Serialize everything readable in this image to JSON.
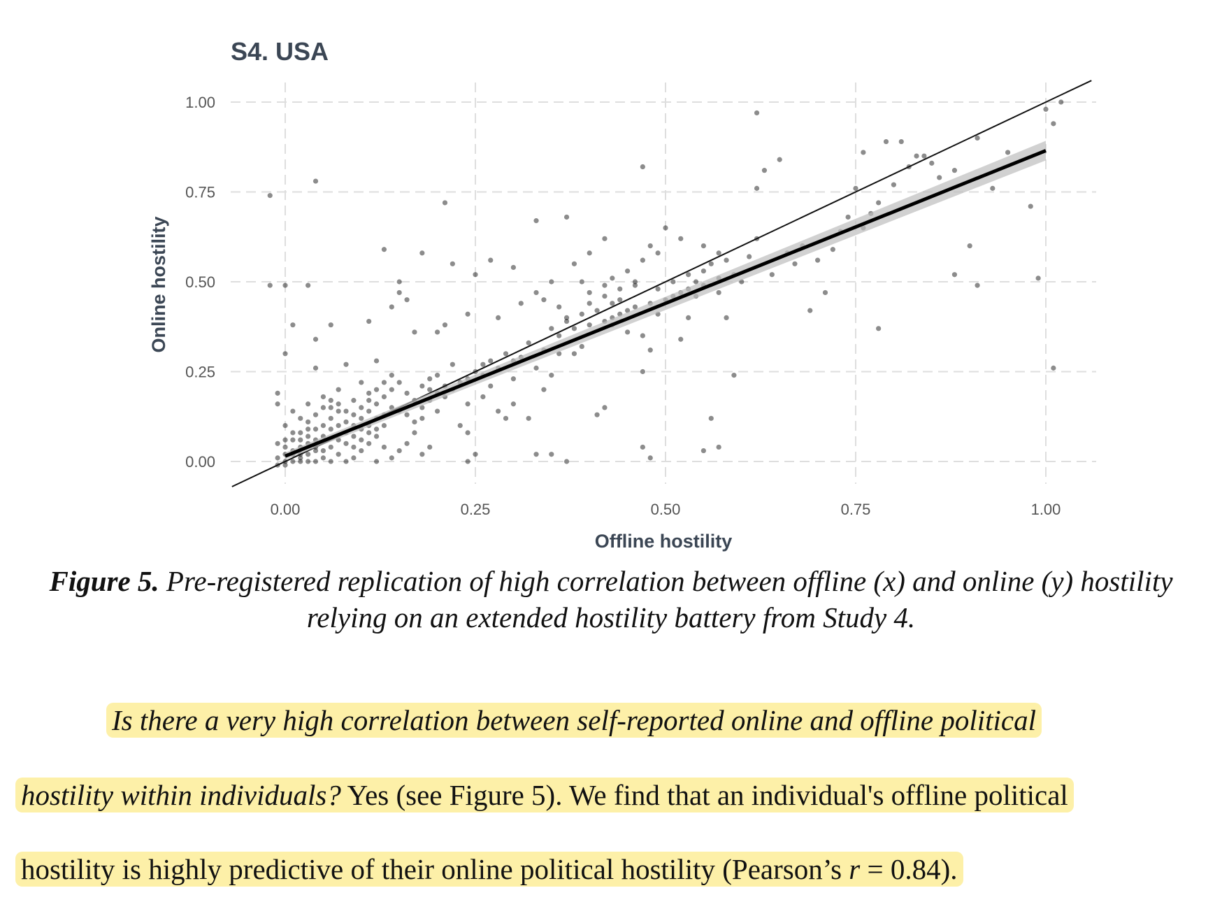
{
  "chart_data": {
    "type": "scatter",
    "title": "S4. USA",
    "xlabel": "Offline hostility",
    "ylabel": "Online hostility",
    "xlim": [
      -0.15,
      1.13
    ],
    "ylim": [
      -0.07,
      1.05
    ],
    "x_ticks": [
      "0.00",
      "0.25",
      "0.50",
      "0.75",
      "1.00"
    ],
    "y_ticks": [
      "0.00",
      "0.25",
      "0.50",
      "0.75",
      "1.00"
    ],
    "grid": true,
    "identity_line": {
      "from": [
        -0.07,
        -0.07
      ],
      "to": [
        1.06,
        1.06
      ]
    },
    "regression_line": {
      "from": [
        0.0,
        0.015
      ],
      "to": [
        1.0,
        0.865
      ]
    },
    "points": [
      [
        -0.02,
        0.74
      ],
      [
        0.04,
        0.78
      ],
      [
        -0.02,
        0.49
      ],
      [
        0.0,
        0.49
      ],
      [
        0.03,
        0.49
      ],
      [
        0.21,
        0.72
      ],
      [
        0.13,
        0.59
      ],
      [
        0.18,
        0.58
      ],
      [
        0.22,
        0.55
      ],
      [
        0.15,
        0.5
      ],
      [
        0.16,
        0.45
      ],
      [
        0.15,
        0.47
      ],
      [
        0.11,
        0.39
      ],
      [
        0.06,
        0.38
      ],
      [
        0.01,
        0.38
      ],
      [
        0.04,
        0.34
      ],
      [
        0.0,
        0.3
      ],
      [
        0.08,
        0.27
      ],
      [
        0.04,
        0.26
      ],
      [
        0.12,
        0.28
      ],
      [
        0.27,
        0.56
      ],
      [
        0.25,
        0.52
      ],
      [
        0.3,
        0.54
      ],
      [
        0.33,
        0.67
      ],
      [
        0.37,
        0.68
      ],
      [
        0.4,
        0.58
      ],
      [
        0.42,
        0.62
      ],
      [
        0.38,
        0.55
      ],
      [
        0.35,
        0.5
      ],
      [
        0.33,
        0.47
      ],
      [
        0.34,
        0.45
      ],
      [
        0.31,
        0.44
      ],
      [
        0.28,
        0.4
      ],
      [
        0.24,
        0.41
      ],
      [
        0.21,
        0.38
      ],
      [
        0.2,
        0.36
      ],
      [
        0.17,
        0.36
      ],
      [
        0.14,
        0.43
      ],
      [
        0.36,
        0.43
      ],
      [
        0.37,
        0.4
      ],
      [
        0.4,
        0.47
      ],
      [
        0.42,
        0.49
      ],
      [
        0.39,
        0.5
      ],
      [
        0.43,
        0.51
      ],
      [
        0.45,
        0.53
      ],
      [
        0.47,
        0.56
      ],
      [
        0.48,
        0.6
      ],
      [
        0.49,
        0.58
      ],
      [
        0.46,
        0.49
      ],
      [
        0.44,
        0.45
      ],
      [
        0.41,
        0.42
      ],
      [
        0.43,
        0.38
      ],
      [
        0.45,
        0.36
      ],
      [
        0.47,
        0.35
      ],
      [
        0.49,
        0.41
      ],
      [
        0.51,
        0.46
      ],
      [
        0.53,
        0.48
      ],
      [
        0.54,
        0.5
      ],
      [
        0.55,
        0.53
      ],
      [
        0.56,
        0.55
      ],
      [
        0.57,
        0.58
      ],
      [
        0.58,
        0.56
      ],
      [
        0.59,
        0.52
      ],
      [
        0.5,
        0.65
      ],
      [
        0.52,
        0.62
      ],
      [
        0.55,
        0.6
      ],
      [
        0.47,
        0.82
      ],
      [
        0.48,
        0.31
      ],
      [
        0.47,
        0.25
      ],
      [
        0.43,
        0.4
      ],
      [
        0.41,
        0.13
      ],
      [
        0.42,
        0.15
      ],
      [
        0.47,
        0.04
      ],
      [
        0.48,
        0.01
      ],
      [
        0.55,
        0.03
      ],
      [
        0.57,
        0.04
      ],
      [
        0.56,
        0.12
      ],
      [
        0.59,
        0.24
      ],
      [
        0.52,
        0.34
      ],
      [
        0.53,
        0.4
      ],
      [
        0.57,
        0.47
      ],
      [
        0.58,
        0.4
      ],
      [
        0.62,
        0.97
      ],
      [
        0.62,
        0.76
      ],
      [
        0.63,
        0.81
      ],
      [
        0.65,
        0.84
      ],
      [
        0.61,
        0.57
      ],
      [
        0.62,
        0.62
      ],
      [
        0.66,
        0.58
      ],
      [
        0.68,
        0.6
      ],
      [
        0.69,
        0.42
      ],
      [
        0.72,
        0.59
      ],
      [
        0.71,
        0.47
      ],
      [
        0.74,
        0.68
      ],
      [
        0.73,
        0.64
      ],
      [
        0.75,
        0.76
      ],
      [
        0.78,
        0.72
      ],
      [
        0.76,
        0.86
      ],
      [
        0.79,
        0.89
      ],
      [
        0.81,
        0.89
      ],
      [
        0.82,
        0.82
      ],
      [
        0.83,
        0.85
      ],
      [
        0.84,
        0.85
      ],
      [
        0.85,
        0.83
      ],
      [
        0.78,
        0.37
      ],
      [
        0.88,
        0.52
      ],
      [
        0.9,
        0.6
      ],
      [
        0.91,
        0.49
      ],
      [
        0.93,
        0.76
      ],
      [
        0.91,
        0.9
      ],
      [
        0.95,
        0.86
      ],
      [
        0.98,
        0.71
      ],
      [
        0.99,
        0.51
      ],
      [
        1.0,
        0.98
      ],
      [
        1.01,
        0.94
      ],
      [
        1.01,
        0.26
      ],
      [
        1.02,
        1.0
      ],
      [
        0.86,
        0.79
      ],
      [
        0.88,
        0.81
      ],
      [
        0.8,
        0.77
      ],
      [
        0.76,
        0.65
      ],
      [
        0.77,
        0.69
      ],
      [
        0.7,
        0.56
      ],
      [
        0.67,
        0.55
      ],
      [
        0.64,
        0.52
      ],
      [
        0.6,
        0.5
      ],
      [
        0.25,
        0.25
      ],
      [
        0.27,
        0.28
      ],
      [
        0.29,
        0.3
      ],
      [
        0.31,
        0.29
      ],
      [
        0.3,
        0.23
      ],
      [
        0.27,
        0.21
      ],
      [
        0.26,
        0.18
      ],
      [
        0.24,
        0.16
      ],
      [
        0.23,
        0.1
      ],
      [
        0.24,
        0.08
      ],
      [
        0.25,
        0.02
      ],
      [
        0.24,
        0.0
      ],
      [
        0.35,
        0.02
      ],
      [
        0.33,
        0.02
      ],
      [
        0.37,
        0.0
      ],
      [
        0.34,
        0.2
      ],
      [
        0.32,
        0.12
      ],
      [
        0.3,
        0.16
      ],
      [
        0.28,
        0.14
      ],
      [
        0.29,
        0.12
      ],
      [
        0.33,
        0.26
      ],
      [
        0.35,
        0.24
      ],
      [
        0.38,
        0.3
      ],
      [
        0.39,
        0.32
      ],
      [
        0.22,
        0.27
      ],
      [
        0.2,
        0.24
      ],
      [
        0.19,
        0.2
      ],
      [
        0.21,
        0.18
      ],
      [
        0.2,
        0.14
      ],
      [
        0.18,
        0.12
      ],
      [
        0.17,
        0.08
      ],
      [
        0.16,
        0.05
      ],
      [
        0.15,
        0.03
      ],
      [
        0.13,
        0.04
      ],
      [
        0.12,
        0.0
      ],
      [
        0.14,
        0.01
      ],
      [
        0.18,
        0.02
      ],
      [
        0.19,
        0.04
      ],
      [
        0.1,
        0.22
      ],
      [
        0.11,
        0.19
      ],
      [
        0.09,
        0.17
      ],
      [
        0.07,
        0.2
      ],
      [
        0.06,
        0.15
      ],
      [
        0.05,
        0.18
      ],
      [
        0.03,
        0.16
      ],
      [
        0.02,
        0.12
      ],
      [
        0.01,
        0.14
      ],
      [
        -0.01,
        0.19
      ],
      [
        -0.01,
        0.16
      ],
      [
        0.0,
        0.1
      ],
      [
        0.02,
        0.08
      ],
      [
        0.03,
        0.05
      ],
      [
        0.04,
        0.03
      ],
      [
        0.05,
        0.01
      ],
      [
        0.06,
        0.04
      ],
      [
        0.07,
        0.06
      ],
      [
        0.08,
        0.08
      ],
      [
        0.09,
        0.1
      ],
      [
        0.1,
        0.12
      ],
      [
        0.11,
        0.14
      ],
      [
        0.12,
        0.16
      ],
      [
        0.13,
        0.18
      ],
      [
        0.14,
        0.2
      ],
      [
        0.15,
        0.22
      ],
      [
        0.16,
        0.19
      ],
      [
        0.17,
        0.17
      ],
      [
        0.18,
        0.21
      ],
      [
        0.19,
        0.23
      ],
      [
        0.2,
        0.19
      ],
      [
        0.13,
        0.1
      ],
      [
        0.12,
        0.07
      ],
      [
        0.11,
        0.05
      ],
      [
        0.1,
        0.03
      ],
      [
        0.09,
        0.01
      ],
      [
        0.08,
        0.0
      ],
      [
        0.07,
        0.02
      ],
      [
        0.06,
        0.0
      ],
      [
        0.05,
        0.03
      ],
      [
        0.04,
        0.06
      ],
      [
        0.03,
        0.09
      ],
      [
        0.02,
        0.04
      ],
      [
        0.01,
        0.02
      ],
      [
        0.0,
        0.0
      ],
      [
        -0.01,
        0.01
      ],
      [
        0.0,
        0.04
      ],
      [
        0.01,
        0.06
      ],
      [
        0.02,
        0.01
      ],
      [
        0.03,
        0.0
      ],
      [
        0.04,
        0.0
      ],
      [
        0.02,
        0.02
      ],
      [
        0.01,
        0.0
      ],
      [
        0.0,
        -0.01
      ],
      [
        -0.01,
        -0.01
      ],
      [
        0.01,
        0.03
      ],
      [
        0.05,
        0.1
      ],
      [
        0.06,
        0.12
      ],
      [
        0.07,
        0.14
      ],
      [
        0.08,
        0.11
      ],
      [
        0.09,
        0.07
      ],
      [
        0.1,
        0.09
      ],
      [
        0.11,
        0.1
      ],
      [
        0.12,
        0.12
      ],
      [
        0.13,
        0.13
      ],
      [
        0.14,
        0.15
      ],
      [
        0.15,
        0.14
      ],
      [
        0.16,
        0.13
      ],
      [
        0.17,
        0.11
      ],
      [
        0.18,
        0.15
      ],
      [
        0.19,
        0.17
      ],
      [
        0.21,
        0.21
      ],
      [
        0.22,
        0.2
      ],
      [
        0.23,
        0.22
      ],
      [
        0.24,
        0.23
      ],
      [
        0.26,
        0.24
      ],
      [
        0.05,
        0.07
      ],
      [
        0.06,
        0.09
      ],
      [
        0.07,
        0.1
      ],
      [
        0.08,
        0.05
      ],
      [
        0.09,
        0.04
      ],
      [
        0.1,
        0.06
      ],
      [
        0.11,
        0.08
      ],
      [
        0.12,
        0.09
      ],
      [
        0.03,
        0.11
      ],
      [
        0.04,
        0.13
      ],
      [
        0.05,
        0.15
      ],
      [
        0.06,
        0.17
      ],
      [
        0.07,
        0.16
      ],
      [
        0.08,
        0.14
      ],
      [
        0.09,
        0.13
      ],
      [
        0.1,
        0.15
      ],
      [
        0.11,
        0.17
      ],
      [
        0.12,
        0.2
      ],
      [
        0.13,
        0.22
      ],
      [
        0.14,
        0.24
      ],
      [
        0.02,
        0.06
      ],
      [
        0.03,
        0.07
      ],
      [
        0.04,
        0.09
      ],
      [
        0.01,
        0.08
      ],
      [
        0.0,
        0.06
      ],
      [
        -0.01,
        0.05
      ],
      [
        0.0,
        0.02
      ],
      [
        0.02,
        0.0
      ],
      [
        0.03,
        0.02
      ],
      [
        0.04,
        0.04
      ],
      [
        0.36,
        0.35
      ],
      [
        0.38,
        0.37
      ],
      [
        0.4,
        0.38
      ],
      [
        0.42,
        0.39
      ],
      [
        0.44,
        0.41
      ],
      [
        0.46,
        0.43
      ],
      [
        0.48,
        0.44
      ],
      [
        0.5,
        0.45
      ],
      [
        0.52,
        0.47
      ],
      [
        0.54,
        0.46
      ],
      [
        0.32,
        0.33
      ],
      [
        0.34,
        0.31
      ],
      [
        0.36,
        0.3
      ],
      [
        0.3,
        0.28
      ],
      [
        0.28,
        0.26
      ],
      [
        0.26,
        0.27
      ],
      [
        0.4,
        0.44
      ],
      [
        0.42,
        0.46
      ],
      [
        0.44,
        0.48
      ],
      [
        0.46,
        0.5
      ],
      [
        0.49,
        0.48
      ],
      [
        0.51,
        0.5
      ],
      [
        0.53,
        0.52
      ],
      [
        0.55,
        0.49
      ],
      [
        0.57,
        0.51
      ],
      [
        0.45,
        0.42
      ],
      [
        0.43,
        0.44
      ],
      [
        0.39,
        0.41
      ],
      [
        0.37,
        0.39
      ],
      [
        0.35,
        0.37
      ]
    ]
  },
  "caption": {
    "label": "Figure 5.",
    "text": " Pre-registered replication of high correlation between offline (x) and online (y) hostility relying on an extended hostility battery from Study 4."
  },
  "paragraph": {
    "line1": "Is there a very high correlation between self-reported online and offline political",
    "line2_italic": "hostility within individuals?",
    "line2_rest": " Yes (see Figure 5). We find that an individual's offline political",
    "line3_a": "hostility is highly predictive of their online political hostility (Pearson’s ",
    "line3_r": "r",
    "line3_b": " = 0.84)."
  }
}
